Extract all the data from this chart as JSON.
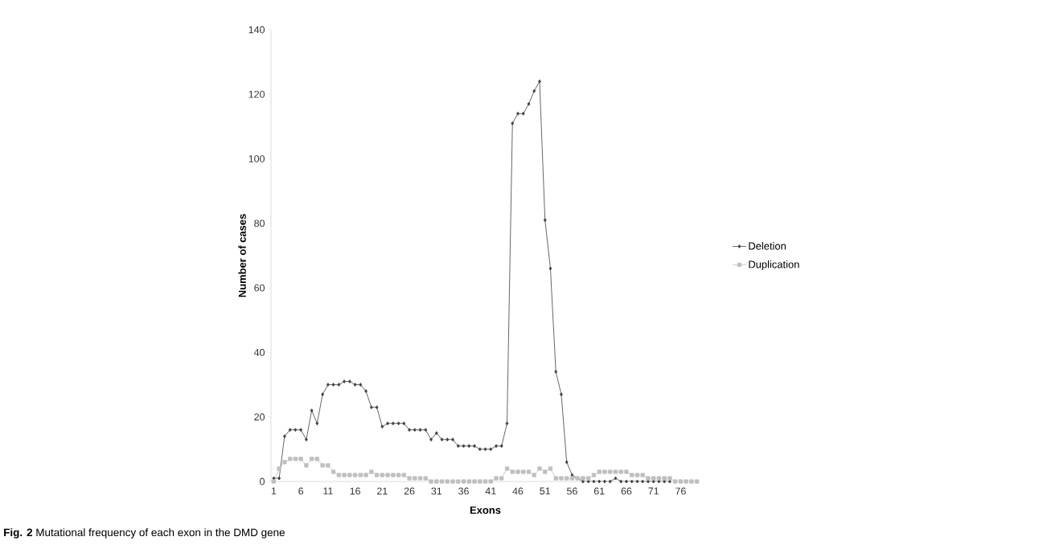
{
  "chart_data": {
    "type": "line",
    "xlabel": "Exons",
    "ylabel": "Number of cases",
    "annotations": [
      "**Fig. 2** Mutational frequency of each exon in the DMD gene"
    ],
    "x": [
      1,
      2,
      3,
      4,
      5,
      6,
      7,
      8,
      9,
      10,
      11,
      12,
      13,
      14,
      15,
      16,
      17,
      18,
      19,
      20,
      21,
      22,
      23,
      24,
      25,
      26,
      27,
      28,
      29,
      30,
      31,
      32,
      33,
      34,
      35,
      36,
      37,
      38,
      39,
      40,
      41,
      42,
      43,
      44,
      45,
      46,
      47,
      48,
      49,
      50,
      51,
      52,
      53,
      54,
      55,
      56,
      57,
      58,
      59,
      60,
      61,
      62,
      63,
      64,
      65,
      66,
      67,
      68,
      69,
      70,
      71,
      72,
      73,
      74,
      75,
      76,
      77,
      78,
      79
    ],
    "series": [
      {
        "name": "Deletion",
        "color": "#404040",
        "marker": "diamond",
        "values": [
          1,
          1,
          14,
          16,
          16,
          16,
          13,
          22,
          18,
          27,
          30,
          30,
          30,
          31,
          31,
          30,
          30,
          28,
          23,
          23,
          17,
          18,
          18,
          18,
          18,
          16,
          16,
          16,
          16,
          13,
          15,
          13,
          13,
          13,
          11,
          11,
          11,
          11,
          10,
          10,
          10,
          11,
          11,
          18,
          111,
          114,
          114,
          117,
          121,
          124,
          81,
          66,
          34,
          27,
          6,
          2,
          1,
          0,
          0,
          0,
          0,
          0,
          0,
          1,
          0,
          0,
          0,
          0,
          0,
          0,
          0,
          0,
          0,
          0,
          null,
          null,
          null,
          null,
          null
        ]
      },
      {
        "name": "Duplication",
        "color": "#bfbfbf",
        "marker": "square",
        "values": [
          0,
          4,
          6,
          7,
          7,
          7,
          5,
          7,
          7,
          5,
          5,
          3,
          2,
          2,
          2,
          2,
          2,
          2,
          3,
          2,
          2,
          2,
          2,
          2,
          2,
          1,
          1,
          1,
          1,
          0,
          0,
          0,
          0,
          0,
          0,
          0,
          0,
          0,
          0,
          0,
          0,
          1,
          1,
          4,
          3,
          3,
          3,
          3,
          2,
          4,
          3,
          4,
          1,
          1,
          1,
          1,
          1,
          1,
          1,
          2,
          3,
          3,
          3,
          3,
          3,
          3,
          2,
          2,
          2,
          1,
          1,
          1,
          1,
          1,
          0,
          0,
          0,
          0,
          0
        ]
      }
    ],
    "xlim": [
      0.5,
      79.5
    ],
    "ylim": [
      0,
      140
    ],
    "xticks": [
      1,
      6,
      11,
      16,
      21,
      26,
      31,
      36,
      41,
      46,
      51,
      56,
      61,
      66,
      71,
      76
    ],
    "yticks": [
      0,
      20,
      40,
      60,
      80,
      100,
      120,
      140
    ],
    "legend": "right",
    "line_style": "solid"
  }
}
